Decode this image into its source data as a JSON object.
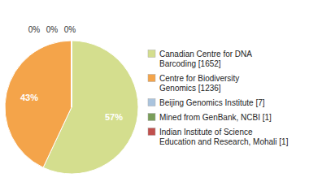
{
  "chart_data": {
    "type": "pie",
    "categories": [
      "Canadian Centre for DNA\nBarcoding [1652]",
      "Centre for Biodiversity\nGenomics [1236]",
      "Beijing Genomics Institute [7]",
      "Mined from GenBank, NCBI [1]",
      "Indian Institute of Science\nEducation and Research, Mohali [1]"
    ],
    "values": [
      57,
      43,
      0,
      0,
      0
    ],
    "value_labels": [
      "57%",
      "43%",
      "0%",
      "0%",
      "0%"
    ],
    "colors": [
      "#d4de8e",
      "#f4a44a",
      "#aac4de",
      "#7a9e5a",
      "#c0504d"
    ],
    "data_labels": true,
    "legend": "right"
  }
}
